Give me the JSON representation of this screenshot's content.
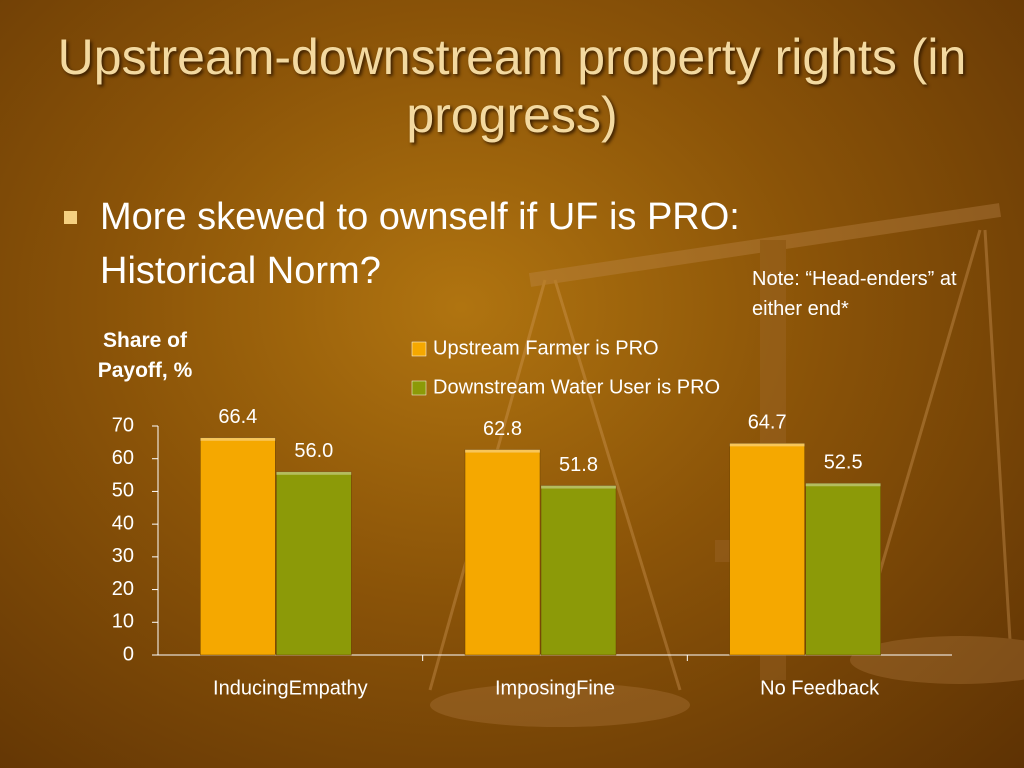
{
  "title": "Upstream-downstream property rights (in progress)",
  "bullet": "More skewed to ownself if UF is PRO: Historical Norm?",
  "note": "Note: “Head-enders” at either end*",
  "chart_data": {
    "type": "bar",
    "ylabel": "Share of Payoff, %",
    "categories": [
      "InducingEmpathy",
      "ImposingFine",
      "No Feedback"
    ],
    "series": [
      {
        "name": "Upstream Farmer is PRO",
        "color": "#f5a800",
        "values": [
          66.4,
          62.8,
          64.7
        ],
        "value_labels": [
          "66.4",
          "62.8",
          "64.7"
        ]
      },
      {
        "name": "Downstream Water User is PRO",
        "color": "#8c9a08",
        "values": [
          56.0,
          51.8,
          52.5
        ],
        "value_labels": [
          "56.0",
          "51.8",
          "52.5"
        ]
      }
    ],
    "ylim": [
      0,
      70
    ],
    "yticks": [
      0,
      10,
      20,
      30,
      40,
      50,
      60,
      70
    ]
  }
}
